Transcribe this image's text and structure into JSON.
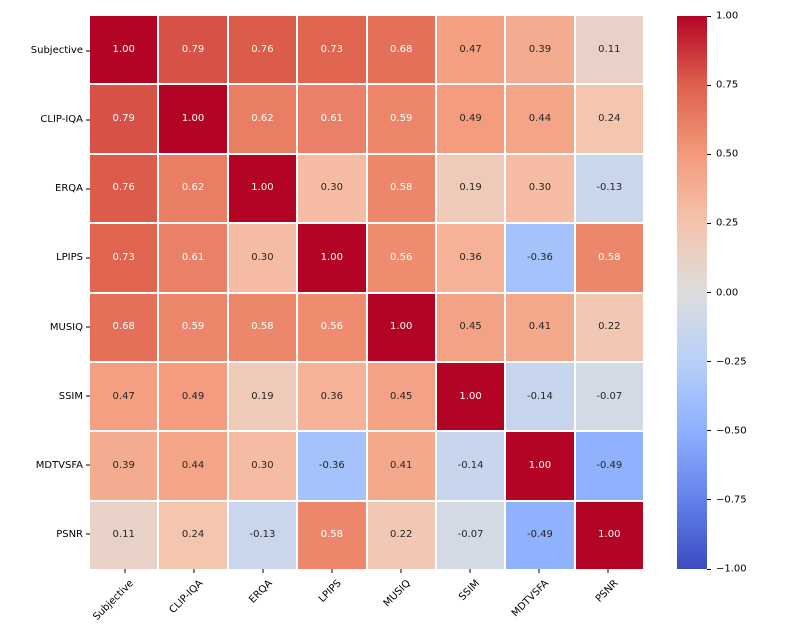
{
  "chart_data": {
    "type": "heatmap",
    "title": "",
    "labels": [
      "Subjective",
      "CLIP-IQA",
      "ERQA",
      "LPIPS",
      "MUSIQ",
      "SSIM",
      "MDTVSFA",
      "PSNR"
    ],
    "matrix": [
      [
        1.0,
        0.79,
        0.76,
        0.73,
        0.68,
        0.47,
        0.39,
        0.11
      ],
      [
        0.79,
        1.0,
        0.62,
        0.61,
        0.59,
        0.49,
        0.44,
        0.24
      ],
      [
        0.76,
        0.62,
        1.0,
        0.3,
        0.58,
        0.19,
        0.3,
        -0.13
      ],
      [
        0.73,
        0.61,
        0.3,
        1.0,
        0.56,
        0.36,
        -0.36,
        0.58
      ],
      [
        0.68,
        0.59,
        0.58,
        0.56,
        1.0,
        0.45,
        0.41,
        0.22
      ],
      [
        0.47,
        0.49,
        0.19,
        0.36,
        0.45,
        1.0,
        -0.14,
        -0.07
      ],
      [
        0.39,
        0.44,
        0.3,
        -0.36,
        0.41,
        -0.14,
        1.0,
        -0.49
      ],
      [
        0.11,
        0.24,
        -0.13,
        0.58,
        0.22,
        -0.07,
        -0.49,
        1.0
      ]
    ],
    "annotation_decimals": 2,
    "colormap": "coolwarm",
    "vmin": -1.0,
    "vmax": 1.0,
    "grid": false,
    "legend_position": "right-colorbar",
    "colorbar": {
      "tick_labels": [
        "1.00",
        "0.75",
        "0.50",
        "0.25",
        "0.00",
        "−0.25",
        "−0.50",
        "−0.75",
        "−1.00"
      ],
      "tick_values": [
        1.0,
        0.75,
        0.5,
        0.25,
        0.0,
        -0.25,
        -0.5,
        -0.75,
        -1.0
      ]
    },
    "colors": {
      "cmap_max": "#B40426",
      "cmap_mid": "#DDDDDD",
      "cmap_min": "#3B4CC0",
      "cell_gap_line": "#FFFFFF",
      "annotation_light": "#FFFFFF",
      "annotation_dark": "#262626",
      "axis_text": "#000000",
      "background": "#FFFFFF"
    }
  }
}
